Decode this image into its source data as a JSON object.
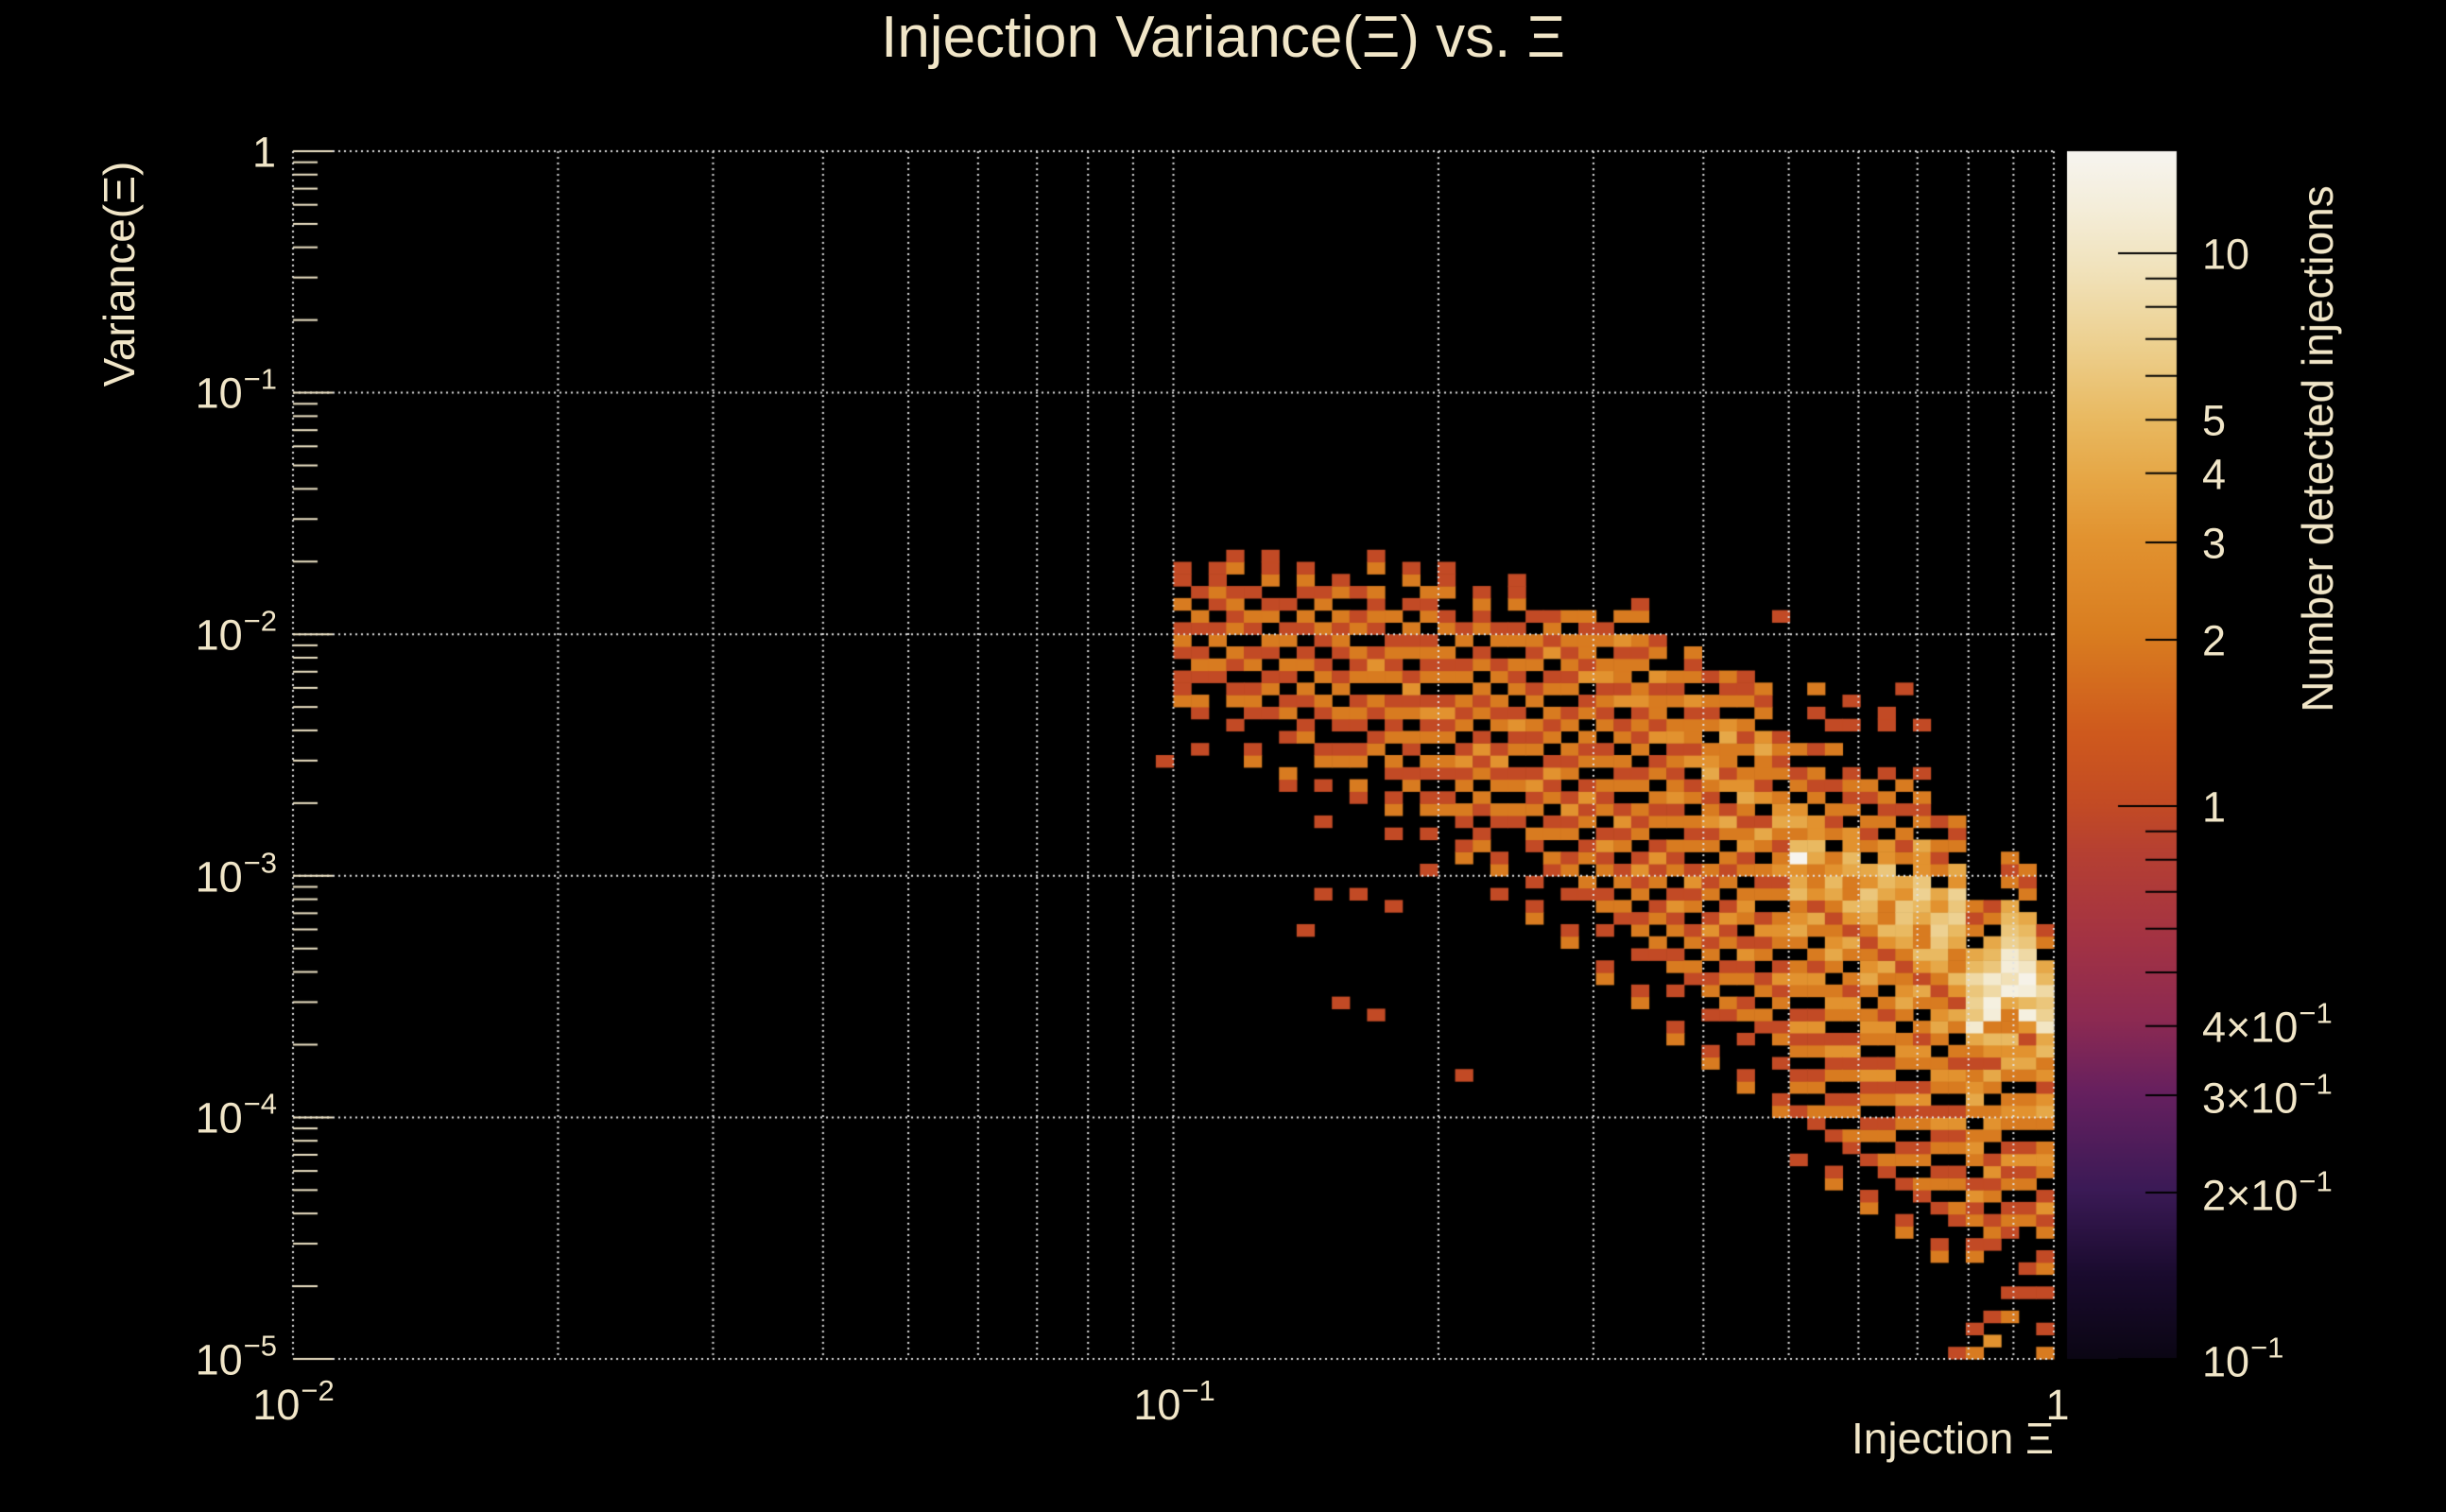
{
  "title": "Injection Variance(Ξ) vs. Ξ",
  "colors": {
    "background": "#000000",
    "text": "#f1e6c8",
    "grid": "#e3e3e3",
    "axis_tick": "#f1e6c8",
    "colorbar_tick": "#000000",
    "count1_bin": "#c6491d",
    "peak_bin": "#f7f5f0"
  },
  "axes": {
    "x": {
      "title": "Injection Ξ",
      "scale": "log",
      "min": 0.01,
      "max": 1,
      "ticks": [
        {
          "v": 0.01,
          "base": "10",
          "exp": "−2"
        },
        {
          "v": 0.1,
          "base": "10",
          "exp": "−1"
        },
        {
          "v": 1,
          "base": "1",
          "exp": ""
        }
      ]
    },
    "y": {
      "title": "Variance(Ξ)",
      "scale": "log",
      "min": 1e-05,
      "max": 1,
      "ticks": [
        {
          "v": 1,
          "base": "1",
          "exp": ""
        },
        {
          "v": 0.1,
          "base": "10",
          "exp": "−1"
        },
        {
          "v": 0.01,
          "base": "10",
          "exp": "−2"
        },
        {
          "v": 0.001,
          "base": "10",
          "exp": "−3"
        },
        {
          "v": 0.0001,
          "base": "10",
          "exp": "−4"
        },
        {
          "v": 1e-05,
          "base": "10",
          "exp": "−5"
        }
      ]
    },
    "z": {
      "title": "Number detected injections",
      "scale": "log",
      "min": 0.1,
      "max": 15.3,
      "ticks": [
        {
          "v": 10,
          "base": "10",
          "exp": ""
        },
        {
          "v": 5,
          "base": "5",
          "exp": ""
        },
        {
          "v": 4,
          "base": "4",
          "exp": ""
        },
        {
          "v": 3,
          "base": "3",
          "exp": ""
        },
        {
          "v": 2,
          "base": "2",
          "exp": ""
        },
        {
          "v": 1,
          "base": "1",
          "exp": ""
        },
        {
          "v": 0.4,
          "base": "4×10",
          "exp": "−1"
        },
        {
          "v": 0.3,
          "base": "3×10",
          "exp": "−1"
        },
        {
          "v": 0.2,
          "base": "2×10",
          "exp": "−1"
        },
        {
          "v": 0.1,
          "base": "10",
          "exp": "−1"
        }
      ]
    }
  },
  "palette": [
    [
      0.0,
      "#0b0614"
    ],
    [
      0.07,
      "#1a0b2e"
    ],
    [
      0.14,
      "#3b1a56"
    ],
    [
      0.22,
      "#66205f"
    ],
    [
      0.28,
      "#8c2a52"
    ],
    [
      0.35,
      "#a43343"
    ],
    [
      0.42,
      "#b64032"
    ],
    [
      0.46,
      "#c34b24"
    ],
    [
      0.52,
      "#cf5a1d"
    ],
    [
      0.6,
      "#d97d20"
    ],
    [
      0.68,
      "#e29330"
    ],
    [
      0.73,
      "#e6a746"
    ],
    [
      0.78,
      "#e9ba62"
    ],
    [
      0.84,
      "#edd08f"
    ],
    [
      0.9,
      "#f1e2ba"
    ],
    [
      0.95,
      "#f4edd8"
    ],
    [
      1.0,
      "#f7f5f0"
    ]
  ],
  "chart_data": {
    "type": "heatmap",
    "title": "Injection Variance(Ξ) vs. Ξ",
    "xlabel": "Injection Ξ",
    "ylabel": "Variance(Ξ)",
    "zlabel": "Number detected injections",
    "x_scale": "log",
    "y_scale": "log",
    "z_scale": "log",
    "x_range": [
      0.01,
      1
    ],
    "y_range": [
      1e-05,
      1
    ],
    "z_range": [
      0.1,
      15.3
    ],
    "n_bins_x": 100,
    "n_bins_y": 100,
    "grid": {
      "x_lines": "decades and 2-9 subdecades, dotted",
      "y_lines": "decades only, dotted",
      "on_top": true
    },
    "legend_position": "right colorbar",
    "bin_encoding": "columns: i = x-bin index (0 at x=0.01, 100 bins over 2 decades); y0 = lowest occupied y-bin (0 at y=1e-5, 100 bins over 5 decades); counts = hex digit per y-bin upward (0=empty, 1-9, a-f=10-15 detected injections)",
    "columns": [
      {
        "i": 49,
        "y0": 49,
        "counts": "1"
      },
      {
        "i": 50,
        "y0": 54,
        "counts": "211012102011"
      },
      {
        "i": 51,
        "y0": 50,
        "counts": "10012012101201"
      },
      {
        "i": 52,
        "y0": 56,
        "counts": "1202101211"
      },
      {
        "i": 53,
        "y0": 52,
        "counts": "102101202121021"
      },
      {
        "i": 54,
        "y0": 49,
        "counts": "210012102101201"
      },
      {
        "i": 55,
        "y0": 53,
        "counts": "10210120210211"
      },
      {
        "i": 56,
        "y0": 47,
        "counts": "1200102101202101"
      },
      {
        "i": 57,
        "y0": 35,
        "counts": "1000000000000000210120210120121"
      },
      {
        "i": 58,
        "y0": 38,
        "counts": "10000010010210012021012021"
      },
      {
        "i": 59,
        "y0": 29,
        "counts": "100000000000000000002101202101212021"
      },
      {
        "i": 60,
        "y0": 38,
        "counts": "10000000120210121021202101"
      },
      {
        "i": 61,
        "y0": 28,
        "counts": "100000000000000000000021012023101212021"
      },
      {
        "i": 62,
        "y0": 37,
        "counts": "1000001021012021210212102"
      },
      {
        "i": 63,
        "y0": 47,
        "counts": "2101202131021201021"
      },
      {
        "i": 64,
        "y0": 40,
        "counts": "100102101202131021210212"
      },
      {
        "i": 65,
        "y0": 45,
        "counts": "210120213102120210211"
      },
      {
        "i": 66,
        "y0": 23,
        "counts": "10000000000000000021012021310212021021"
      },
      {
        "i": 67,
        "y0": 42,
        "counts": "2101202131021202102121"
      },
      {
        "i": 68,
        "y0": 38,
        "counts": "10210012021310212021021"
      },
      {
        "i": 69,
        "y0": 44,
        "counts": "120210213102120210211"
      },
      {
        "i": 70,
        "y0": 36,
        "counts": "21010012021310212021021201"
      },
      {
        "i": 71,
        "y0": 40,
        "counts": "1202102131021202103121"
      },
      {
        "i": 72,
        "y0": 34,
        "counts": "2100102102131021202102121202"
      },
      {
        "i": 73,
        "y0": 38,
        "counts": "120210213102120210312212"
      },
      {
        "i": 74,
        "y0": 31,
        "counts": "210010210213102120210212132021"
      },
      {
        "i": 75,
        "y0": 36,
        "counts": "12021021310212021031221302"
      },
      {
        "i": 76,
        "y0": 29,
        "counts": "2100102102131021202102121320212021"
      },
      {
        "i": 77,
        "y0": 33,
        "counts": "120210213102120210312213021"
      },
      {
        "i": 78,
        "y0": 26,
        "counts": "21001021021310212021321213202120"
      },
      {
        "i": 79,
        "y0": 31,
        "counts": "1202102131021202103122130212"
      },
      {
        "i": 80,
        "y0": 24,
        "counts": "210010210213102120213212432021201"
      },
      {
        "i": 81,
        "y0": 28,
        "counts": "12021021310212024103122430212"
      },
      {
        "i": 82,
        "y0": 22,
        "counts": "21001021021310232021321243202120211"
      },
      {
        "i": 83,
        "y0": 27,
        "counts": "120210213102120241031224302120"
      },
      {
        "i": 84,
        "y0": 20,
        "counts": "210010210213102320213212432021210000000001"
      },
      {
        "i": 85,
        "y0": 16,
        "counts": "1000102102131023202432543f5243021020"
      },
      {
        "i": 86,
        "y0": 19,
        "counts": "1202102131023120241322453302120100102"
      },
      {
        "i": 87,
        "y0": 14,
        "counts": "210010210213102320243212453202120100201"
      },
      {
        "i": 88,
        "y0": 17,
        "counts": "12021021310231202413522453302121000101"
      },
      {
        "i": 89,
        "y0": 12,
        "counts": "210010210213102320243212456340212012"
      },
      {
        "i": 90,
        "y0": 15,
        "counts": "120210213102312024135224563302120100011"
      },
      {
        "i": 91,
        "y0": 10,
        "counts": "2100102102131023202432124566340212010200000001"
      },
      {
        "i": 92,
        "y0": 13,
        "counts": "1202102131023120241352245763340212010001"
      },
      {
        "i": 93,
        "y0": 8,
        "counts": "2100102102131023202432124567634021201"
      },
      {
        "i": 94,
        "y0": 0,
        "counts": "100000000001202102131023120241352245767340212"
      },
      {
        "i": 95,
        "y0": 0,
        "counts": "201000002102131023202432124b6768540212"
      },
      {
        "i": 96,
        "y0": 1,
        "counts": "301000001210213102320241352cd8b6540210"
      },
      {
        "i": 97,
        "y0": 3,
        "counts": "201000012102131023202435224d9cb76540212"
      },
      {
        "i": 98,
        "y0": 5,
        "counts": "10100021021310232024313d5cea86540212"
      },
      {
        "i": 99,
        "y0": 0,
        "counts": "201001021021310232024313254a76854021"
      }
    ]
  }
}
